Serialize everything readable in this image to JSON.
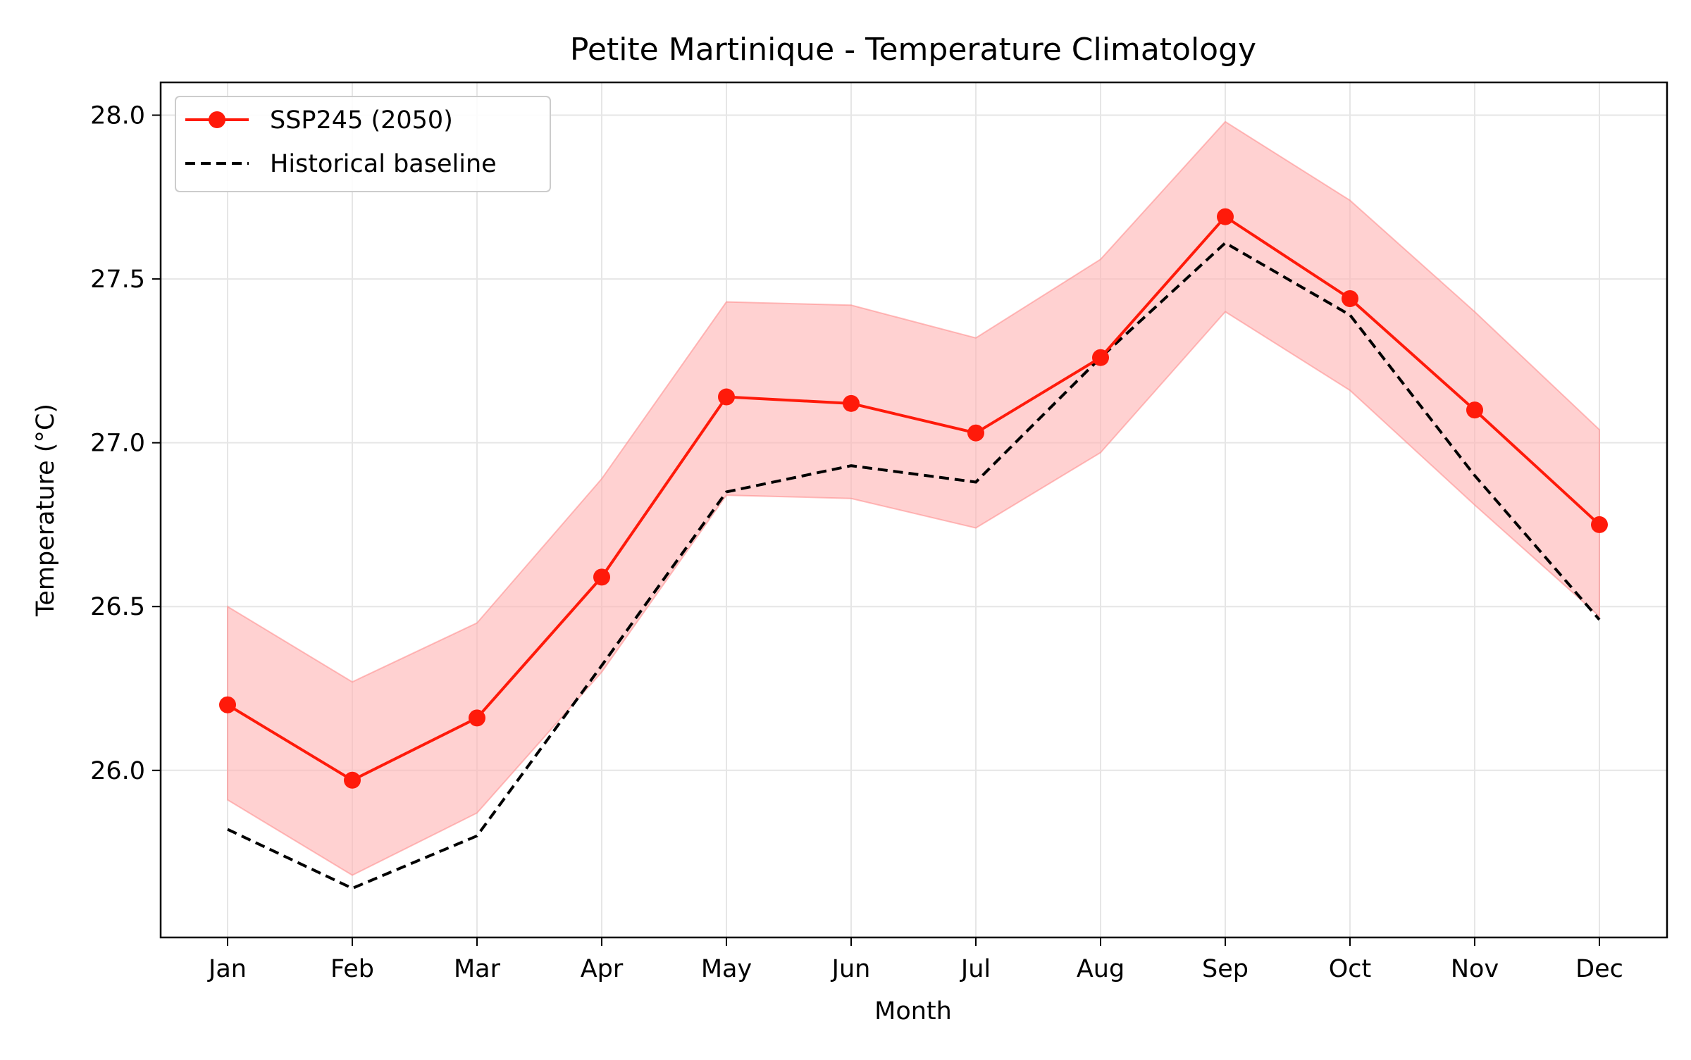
{
  "chart_data": {
    "type": "line",
    "title": "Petite Martinique - Temperature Climatology",
    "xlabel": "Month",
    "ylabel": "Temperature (°C)",
    "categories": [
      "Jan",
      "Feb",
      "Mar",
      "Apr",
      "May",
      "Jun",
      "Jul",
      "Aug",
      "Sep",
      "Oct",
      "Nov",
      "Dec"
    ],
    "ylim": [
      25.49,
      28.1
    ],
    "yticks": [
      26.0,
      26.5,
      27.0,
      27.5,
      28.0
    ],
    "ytick_labels": [
      "26.0",
      "26.5",
      "27.0",
      "27.5",
      "28.0"
    ],
    "grid": true,
    "legend_position": "top-left",
    "series": [
      {
        "name": "SSP245 (2050)",
        "values": [
          26.2,
          25.97,
          26.16,
          26.59,
          27.14,
          27.12,
          27.03,
          27.26,
          27.69,
          27.44,
          27.1,
          26.75
        ],
        "color": "#ff1a0a",
        "style": "solid-marker"
      },
      {
        "name": "Historical baseline",
        "values": [
          25.82,
          25.64,
          25.8,
          26.32,
          26.85,
          26.93,
          26.88,
          27.26,
          27.61,
          27.39,
          26.9,
          26.46
        ],
        "color": "#000000",
        "style": "dashed"
      }
    ],
    "band": {
      "upper": [
        26.5,
        26.27,
        26.45,
        26.89,
        27.43,
        27.42,
        27.32,
        27.56,
        27.98,
        27.74,
        27.4,
        27.04
      ],
      "lower": [
        25.91,
        25.68,
        25.87,
        26.3,
        26.84,
        26.83,
        26.74,
        26.97,
        27.4,
        27.16,
        26.81,
        26.47
      ],
      "color": "#ffb3b3"
    }
  }
}
